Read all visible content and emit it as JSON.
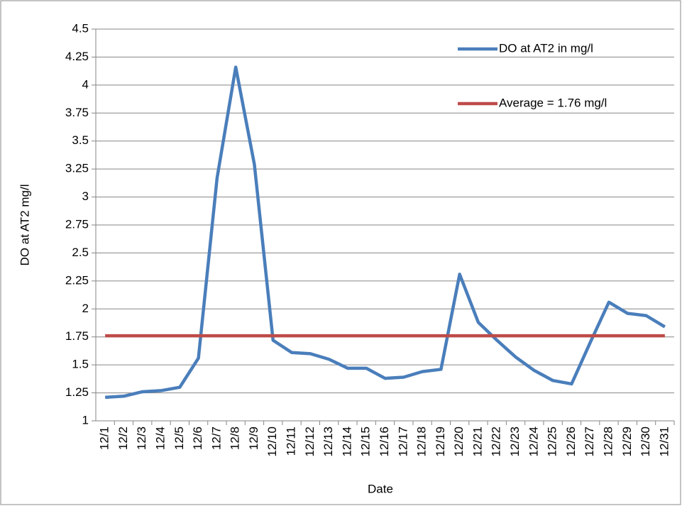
{
  "chart_data": {
    "type": "line",
    "x_label": "Date",
    "y_label": "DO at AT2 mg/l",
    "categories": [
      "12/1",
      "12/2",
      "12/3",
      "12/4",
      "12/5",
      "12/6",
      "12/7",
      "12/8",
      "12/9",
      "12/10",
      "12/11",
      "12/12",
      "12/13",
      "12/14",
      "12/15",
      "12/16",
      "12/17",
      "12/18",
      "12/19",
      "12/20",
      "12/21",
      "12/22",
      "12/23",
      "12/24",
      "12/25",
      "12/26",
      "12/27",
      "12/28",
      "12/29",
      "12/30",
      "12/31"
    ],
    "series": [
      {
        "name": "DO at AT2 in mg/l",
        "color": "#4a7ebb",
        "values": [
          1.21,
          1.22,
          1.26,
          1.27,
          1.3,
          1.56,
          3.17,
          4.16,
          3.29,
          1.72,
          1.61,
          1.6,
          1.55,
          1.47,
          1.47,
          1.38,
          1.39,
          1.44,
          1.46,
          2.31,
          1.88,
          1.72,
          1.57,
          1.45,
          1.36,
          1.33,
          1.7,
          2.06,
          1.96,
          1.94,
          1.84
        ]
      },
      {
        "name": "Average = 1.76 mg/l",
        "color": "#be4b48",
        "values": [
          1.76,
          1.76,
          1.76,
          1.76,
          1.76,
          1.76,
          1.76,
          1.76,
          1.76,
          1.76,
          1.76,
          1.76,
          1.76,
          1.76,
          1.76,
          1.76,
          1.76,
          1.76,
          1.76,
          1.76,
          1.76,
          1.76,
          1.76,
          1.76,
          1.76,
          1.76,
          1.76,
          1.76,
          1.76,
          1.76,
          1.76
        ]
      }
    ],
    "ylim": [
      1,
      4.5
    ],
    "yticks": [
      1,
      1.25,
      1.5,
      1.75,
      2,
      2.25,
      2.5,
      2.75,
      3,
      3.25,
      3.5,
      3.75,
      4,
      4.25,
      4.5
    ],
    "grid": true,
    "legend": "upper-right"
  }
}
